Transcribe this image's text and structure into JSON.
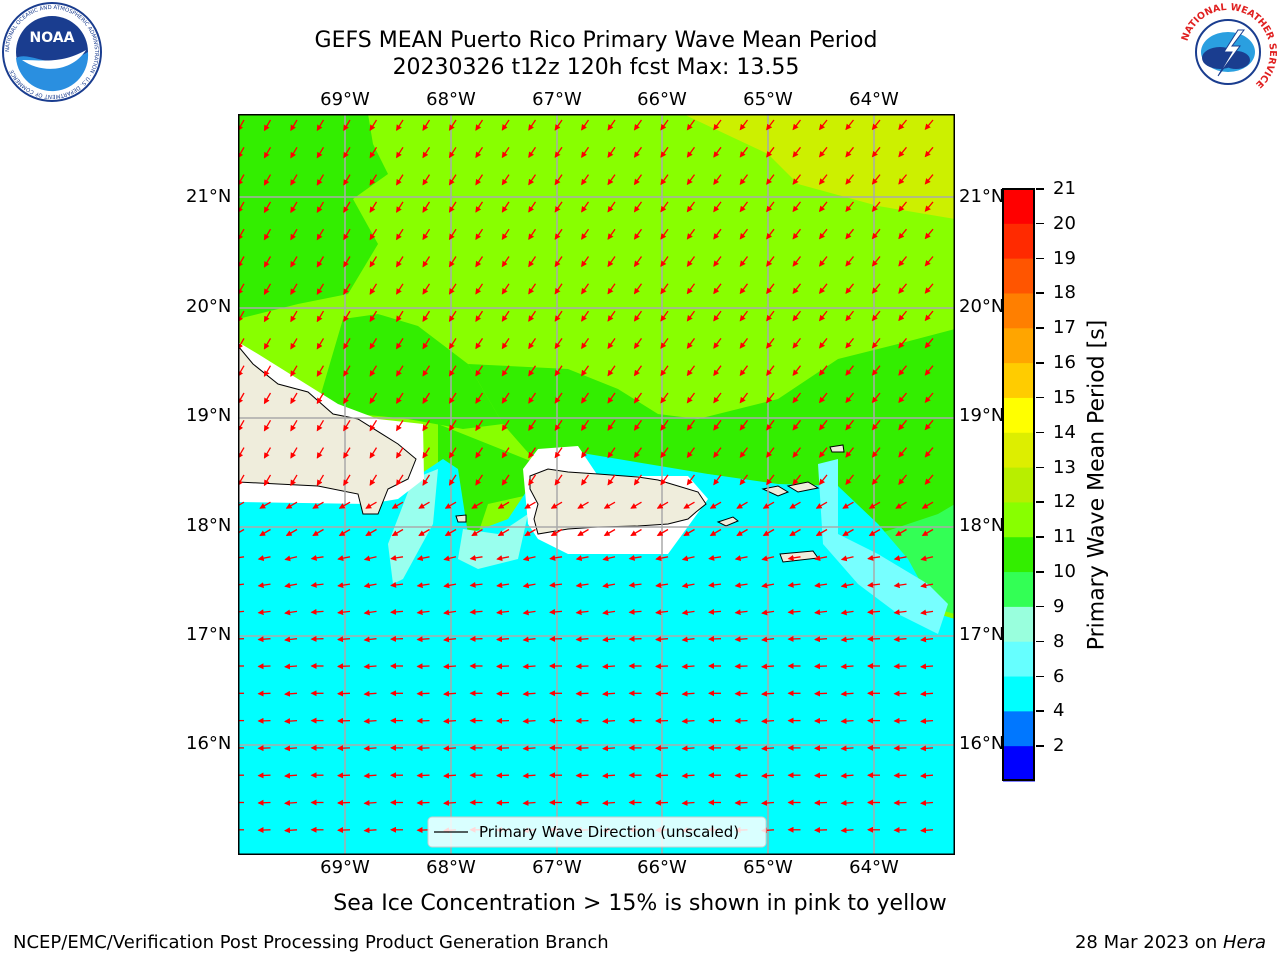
{
  "header": {
    "title_line1": "GEFS MEAN Puerto Rico Primary Wave Mean Period",
    "title_line2": "20230326 t12z 120h fcst   Max: 13.55"
  },
  "logos": {
    "left": "noaa-logo",
    "left_text": "NOAA",
    "left_ring_text": "NATIONAL OCEANIC AND ATMOSPHERIC ADMINISTRATION · U.S. DEPARTMENT OF COMMERCE",
    "right": "national-weather-service-logo",
    "right_ring_text": "NATIONAL WEATHER SERVICE"
  },
  "map": {
    "lon_labels": [
      "69°W",
      "68°W",
      "67°W",
      "66°W",
      "65°W",
      "64°W"
    ],
    "lat_labels": [
      "21°N",
      "20°N",
      "19°N",
      "18°N",
      "17°N",
      "16°N"
    ],
    "legend_label": "Primary Wave Direction (unscaled)",
    "arrow_color": "#ff0000",
    "land_color": "#efeddc"
  },
  "colorbar": {
    "label": "Primary Wave Mean Period [s]",
    "ticks": [
      "21",
      "20",
      "19",
      "18",
      "17",
      "16",
      "15",
      "14",
      "13",
      "12",
      "11",
      "10",
      "9",
      "8",
      "6",
      "4",
      "2"
    ],
    "bands": [
      "#ff0000",
      "#ff2a00",
      "#ff5500",
      "#ff7f00",
      "#ffa500",
      "#ffcc00",
      "#ffff00",
      "#ddee00",
      "#b8ee00",
      "#88ff00",
      "#33ee00",
      "#33ff55",
      "#99ffdd",
      "#66ffff",
      "#00ffff",
      "#0077ff",
      "#0000ff"
    ]
  },
  "note": "Sea Ice Concentration > 15% is shown in pink to yellow",
  "footer": {
    "left": "NCEP/EMC/Verification Post Processing Product Generation Branch",
    "date": "28 Mar 2023 on ",
    "machine": "Hera"
  }
}
